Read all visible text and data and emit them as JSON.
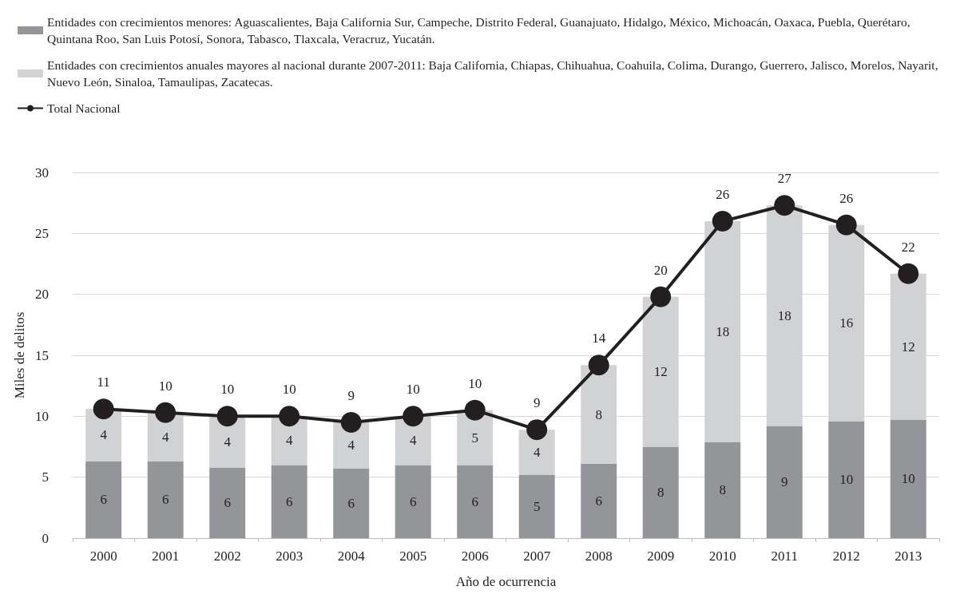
{
  "chart_data": {
    "type": "bar",
    "stacked": true,
    "xlabel": "Año de ocurrencia",
    "ylabel": "Miles de delitos",
    "categories": [
      "2000",
      "2001",
      "2002",
      "2003",
      "2004",
      "2005",
      "2006",
      "2007",
      "2008",
      "2009",
      "2010",
      "2011",
      "2012",
      "2013"
    ],
    "series": [
      {
        "name": "Entidades con crecimientos menores: Aguascalientes, Baja California Sur, Campeche, Distrito Federal, Guanajuato, Hidalgo, México, Michoacán, Oaxaca, Puebla, Querétaro, Quintana Roo, San Luis Potosí, Sonora, Tabasco, Tlaxcala, Veracruz, Yucatán.",
        "color": "#939598",
        "values": [
          6.3,
          6.3,
          5.8,
          6.0,
          5.7,
          6.0,
          6.0,
          5.2,
          6.1,
          7.5,
          7.9,
          9.2,
          9.6,
          9.7
        ],
        "value_labels": [
          "6",
          "6",
          "6",
          "6",
          "6",
          "6",
          "6",
          "5",
          "6",
          "8",
          "8",
          "9",
          "10",
          "10"
        ]
      },
      {
        "name": "Entidades con crecimientos anuales mayores al nacional durante 2007-2011: Baja California, Chiapas, Chihuahua, Coahuila, Colima, Durango, Guerrero, Jalisco, Morelos, Nayarit, Nuevo León, Sinaloa, Tamaulipas, Zacatecas.",
        "color": "#d1d2d4",
        "values": [
          4.3,
          4.0,
          4.2,
          4.0,
          3.8,
          4.0,
          4.5,
          3.7,
          8.1,
          12.3,
          18.1,
          18.1,
          16.1,
          12.0
        ],
        "value_labels": [
          "4",
          "4",
          "4",
          "4",
          "4",
          "4",
          "5",
          "4",
          "8",
          "12",
          "18",
          "18",
          "16",
          "12"
        ]
      },
      {
        "name": "Total Nacional",
        "type": "line",
        "color": "#231f20",
        "marker": "circle",
        "values": [
          10.6,
          10.3,
          10.0,
          10.0,
          9.5,
          10.0,
          10.5,
          8.9,
          14.2,
          19.8,
          26.0,
          27.3,
          25.7,
          21.7
        ],
        "value_labels": [
          "11",
          "10",
          "10",
          "10",
          "9",
          "10",
          "10",
          "9",
          "14",
          "20",
          "26",
          "27",
          "26",
          "22"
        ]
      }
    ],
    "ylim": [
      0,
      30
    ],
    "yticks": [
      0,
      5,
      10,
      15,
      20,
      25,
      30
    ],
    "grid": "y",
    "legend": "top left"
  }
}
